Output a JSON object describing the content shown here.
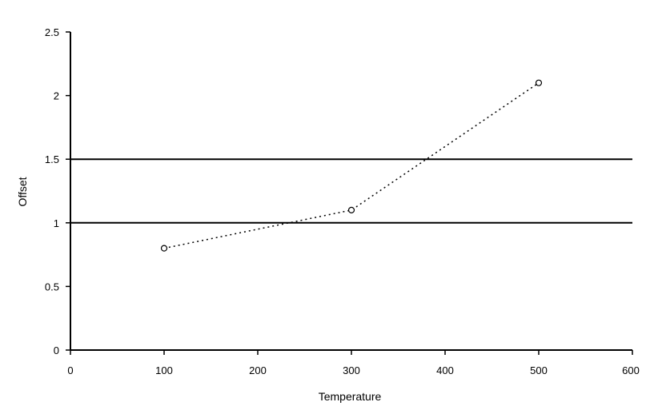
{
  "chart_data": {
    "type": "line",
    "title": "",
    "xlabel": "Temperature",
    "ylabel": "Offset",
    "xlim": [
      0,
      600
    ],
    "ylim": [
      0,
      2.5
    ],
    "x_ticks": [
      0,
      100,
      200,
      300,
      400,
      500,
      600
    ],
    "x_tick_labels": [
      "0",
      "100",
      "200",
      "300",
      "400",
      "500",
      "600"
    ],
    "y_ticks": [
      0,
      0.5,
      1,
      1.5,
      2,
      2.5
    ],
    "y_tick_labels": [
      "0",
      "0.5",
      "1",
      "1.5",
      "2",
      "2.5"
    ],
    "reference_lines": [
      1,
      1.5
    ],
    "series": [
      {
        "x": [
          100,
          300,
          500
        ],
        "y": [
          0.8,
          1.1,
          2.1
        ]
      }
    ],
    "grid": false,
    "legend": "none",
    "colors": {
      "line": "#000000",
      "axis": "#000000",
      "background": "#ffffff"
    }
  }
}
